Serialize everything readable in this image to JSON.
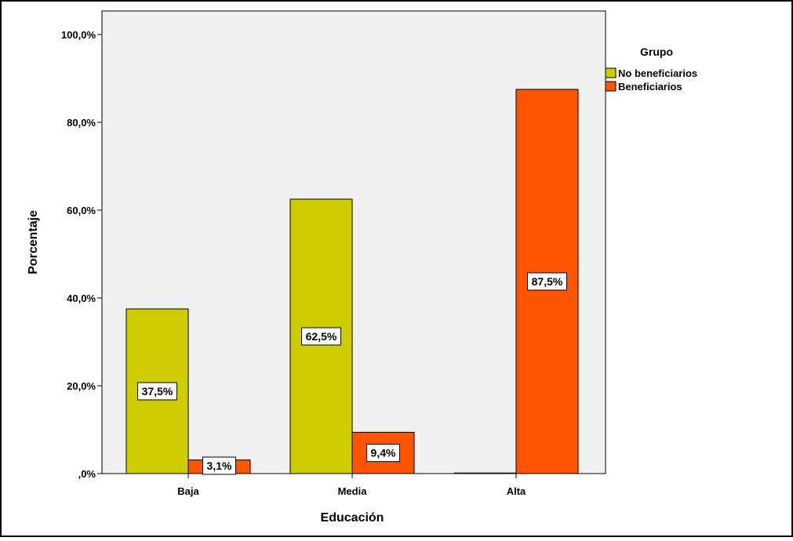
{
  "chart_data": {
    "type": "bar",
    "xlabel": "Educación",
    "ylabel": "Porcentaje",
    "categories": [
      "Baja",
      "Media",
      "Alta"
    ],
    "ylim": [
      0,
      100
    ],
    "yticks": [
      {
        "value": 0,
        "label": ",0%"
      },
      {
        "value": 20,
        "label": "20,0%"
      },
      {
        "value": 40,
        "label": "40,0%"
      },
      {
        "value": 60,
        "label": "60,0%"
      },
      {
        "value": 80,
        "label": "80,0%"
      },
      {
        "value": 100,
        "label": "100,0%"
      }
    ],
    "legend": {
      "title": "Grupo",
      "position": "top-right"
    },
    "grid": false,
    "series": [
      {
        "name": "No beneficiarios",
        "color": "#cccc00",
        "values": [
          37.5,
          62.5,
          0
        ],
        "labels": [
          "37,5%",
          "62,5%",
          ""
        ]
      },
      {
        "name": "Beneficiarios",
        "color": "#ff5500",
        "values": [
          3.1,
          9.4,
          87.5
        ],
        "labels": [
          "3,1%",
          "9,4%",
          "87,5%"
        ]
      }
    ]
  }
}
